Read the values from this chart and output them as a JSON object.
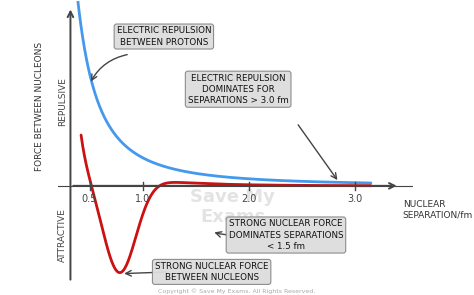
{
  "xlabel": "NUCLEAR\nSEPARATION/fm",
  "ylabel": "FORCE BETWEEN NUCLEONS",
  "repulsive_label": "REPULSIVE",
  "attractive_label": "ATTRACTIVE",
  "x_ticks": [
    0.5,
    1.0,
    2.0,
    3.0
  ],
  "x_tick_labels": [
    "0.5",
    "1.0",
    "2.0",
    "3.0"
  ],
  "electric_color": "#4499EE",
  "strong_color": "#CC1111",
  "bg_color": "#FFFFFF",
  "axis_color": "#444444",
  "box_facecolor": "#DDDDDD",
  "box_edgecolor": "#888888",
  "annotation1_text": "ELECTRIC REPULSION\nBETWEEN PROTONS",
  "annotation2_text": "ELECTRIC REPULSION\nDOMINATES FOR\nSEPARATIONS > 3.0 fm",
  "annotation3_text": "STRONG NUCLEAR FORCE\nDOMINATES SEPARATIONS\n< 1.5 fm",
  "annotation4_text": "STRONG NUCLEAR FORCE\nBETWEEN NUCLEONS",
  "watermark": "Save My\nExams",
  "copyright": "Copyright © Save My Exams. All Rights Reserved."
}
